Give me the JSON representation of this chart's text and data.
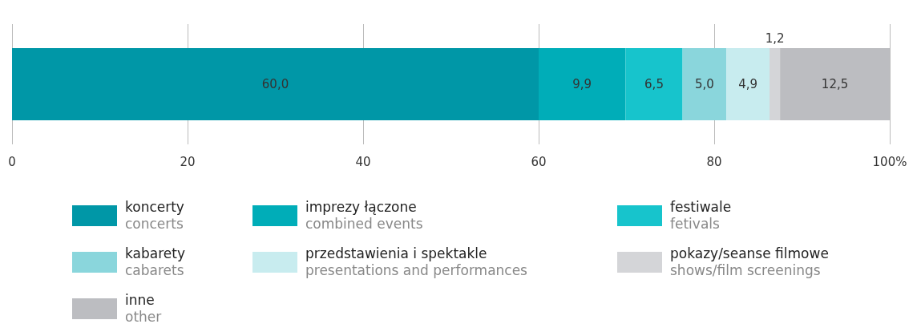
{
  "chart_data": {
    "type": "bar",
    "orientation": "horizontal",
    "stacked": true,
    "categories": [
      null
    ],
    "series": [
      {
        "name": "koncerty\nconcerts",
        "color": "#0097a7",
        "values": [
          60.0
        ],
        "value_labels": [
          "60,0"
        ]
      },
      {
        "name": "imprezy łączone\ncombined events",
        "color": "#00adb8",
        "values": [
          9.9
        ],
        "value_labels": [
          "9,9"
        ]
      },
      {
        "name": "festiwale\nfetivals",
        "color": "#17c4cc",
        "values": [
          6.5
        ],
        "value_labels": [
          "6,5"
        ]
      },
      {
        "name": "kabarety\ncabarets",
        "color": "#8ad6dc",
        "values": [
          5.0
        ],
        "value_labels": [
          "5,0"
        ]
      },
      {
        "name": "przedstawienia i spektakle\npresentations and performances",
        "color": "#c8ecef",
        "values": [
          4.9
        ],
        "value_labels": [
          "4,9"
        ]
      },
      {
        "name": "pokazy/seanse filmowe\nshows/film screenings",
        "color": "#d4d5d8",
        "values": [
          1.2
        ],
        "value_labels": [
          "1,2"
        ]
      },
      {
        "name": "inne\nother",
        "color": "#bcbdc1",
        "values": [
          12.5
        ],
        "value_labels": [
          "12,5"
        ]
      }
    ],
    "xlim": [
      0,
      100
    ],
    "xticks": [
      0,
      20,
      40,
      60,
      80,
      {
        "value": 100,
        "label": "100%"
      }
    ],
    "grid": "x",
    "legend": "bottom"
  }
}
